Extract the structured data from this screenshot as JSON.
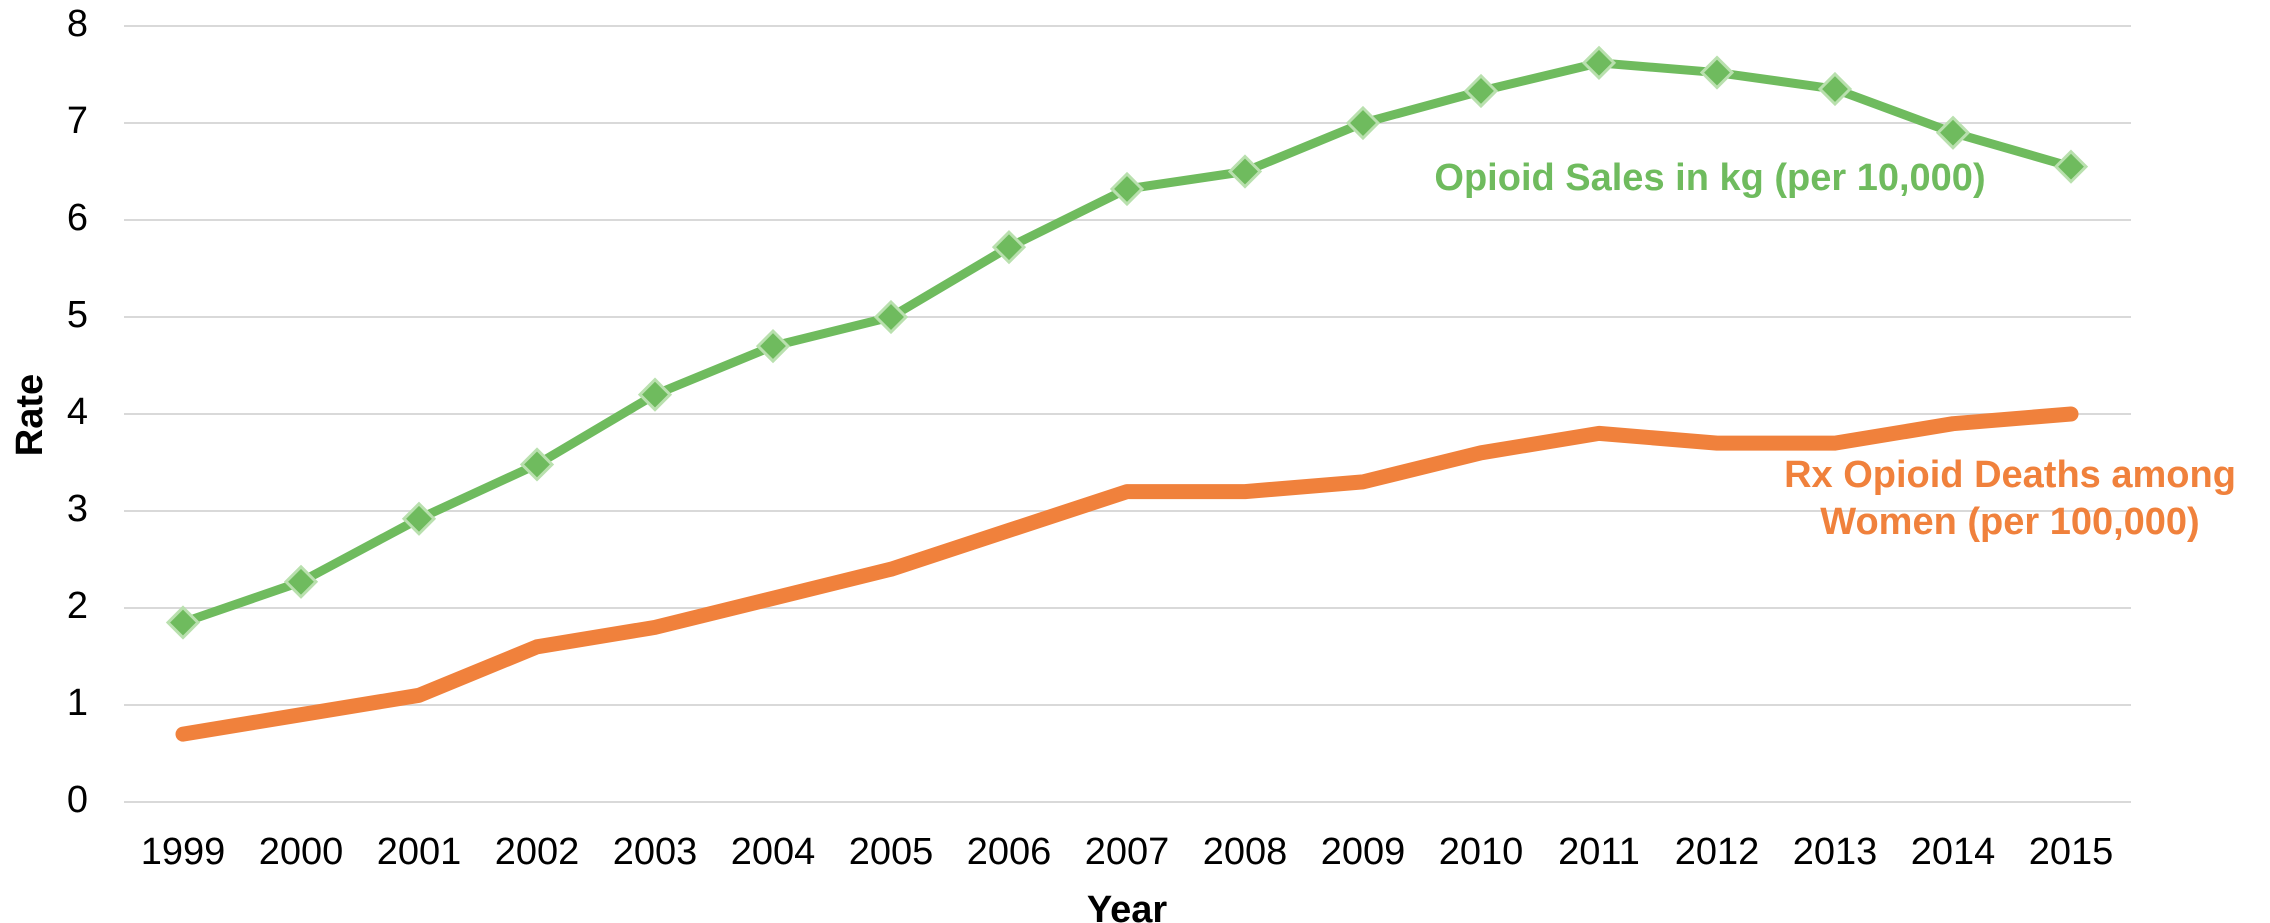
{
  "chart_data": {
    "type": "line",
    "x_label": "Year",
    "y_label": "Rate",
    "categories": [
      "1999",
      "2000",
      "2001",
      "2002",
      "2003",
      "2004",
      "2005",
      "2006",
      "2007",
      "2008",
      "2009",
      "2010",
      "2011",
      "2012",
      "2013",
      "2014",
      "2015"
    ],
    "series": [
      {
        "name": "Opioid Sales in kg (per 10,000)",
        "color": "#6fbb5e",
        "marker": "diamond",
        "values": [
          1.85,
          2.27,
          2.92,
          3.48,
          4.2,
          4.7,
          5.0,
          5.72,
          6.32,
          6.5,
          7.0,
          7.33,
          7.62,
          7.52,
          7.35,
          6.9,
          6.55
        ]
      },
      {
        "name": "Rx Opioid Deaths among Women (per 100,000)",
        "color": "#f0813c",
        "marker": "none",
        "values": [
          0.7,
          0.9,
          1.1,
          1.6,
          1.8,
          2.1,
          2.4,
          2.8,
          3.2,
          3.2,
          3.3,
          3.6,
          3.8,
          3.7,
          3.7,
          3.9,
          4.0
        ]
      }
    ],
    "ylim": [
      0,
      8
    ],
    "yticks": [
      0,
      1,
      2,
      3,
      4,
      5,
      6,
      7,
      8
    ],
    "grid": true
  }
}
